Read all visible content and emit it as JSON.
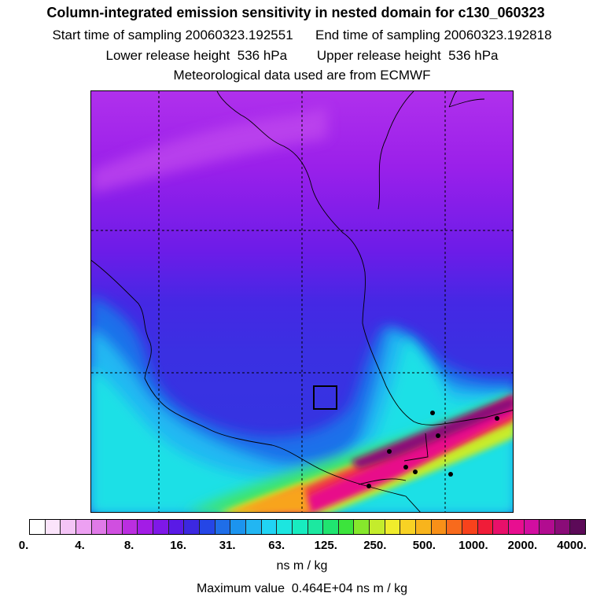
{
  "header": {
    "title": "Column-integrated emission sensitivity in nested domain for c130_060323",
    "line1": "Start time of sampling 20060323.192551      End time of sampling 20060323.192818",
    "line2": "Lower release height  536 hPa        Upper release height  536 hPa",
    "line3": "Meteorological data used are from ECMWF"
  },
  "colorbar": {
    "colors": [
      "#ffffff",
      "#fbe4fb",
      "#f4c4f6",
      "#eda0f2",
      "#e07ae8",
      "#d04fe0",
      "#bb2ee0",
      "#a31ce6",
      "#7f18e8",
      "#5a1ae6",
      "#3c28e0",
      "#2546e6",
      "#1f6ee8",
      "#1c94ee",
      "#22b6f2",
      "#21d4f4",
      "#1ce6e0",
      "#18ecc0",
      "#1ce8a0",
      "#20e470",
      "#3ce43c",
      "#86e82c",
      "#c4ec2c",
      "#f0ec2c",
      "#f8d224",
      "#f8b41c",
      "#f89018",
      "#f86a1c",
      "#f8421c",
      "#f01c38",
      "#e8106a",
      "#e80e90",
      "#d20ea0",
      "#b20c90",
      "#8a0c78",
      "#5c0a58"
    ],
    "tick_labels": [
      "0.",
      "4.",
      "8.",
      "16.",
      "31.",
      "63.",
      "125.",
      "250.",
      "500.",
      "1000.",
      "2000.",
      "4000."
    ],
    "units": "ns m / kg"
  },
  "footer": {
    "max_value": "Maximum value  0.464E+04 ns m / kg"
  }
}
